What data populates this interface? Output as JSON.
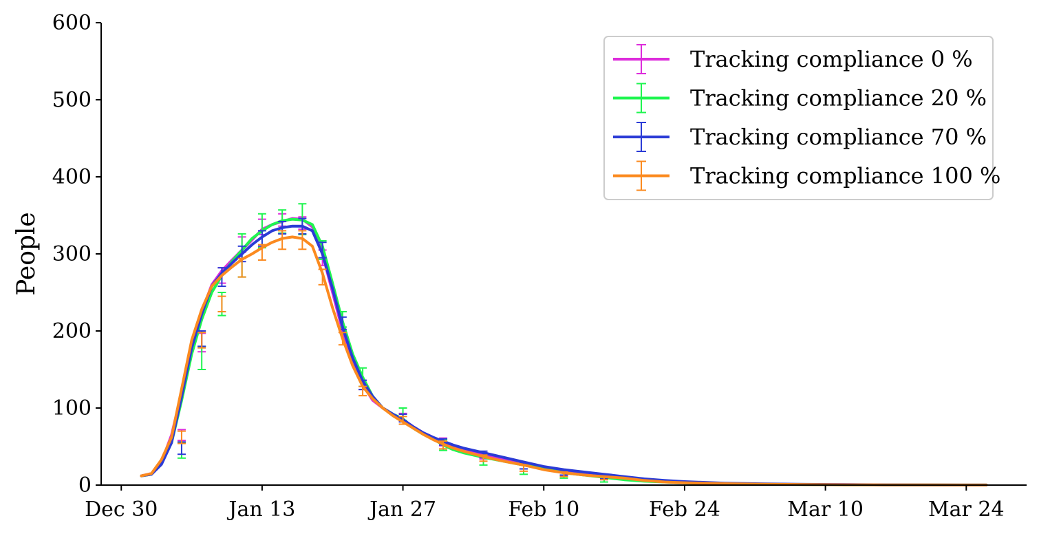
{
  "chart_data": {
    "type": "line",
    "title": "",
    "xlabel": "",
    "ylabel": "People",
    "ylim": [
      0,
      600
    ],
    "yticks": [
      0,
      100,
      200,
      300,
      400,
      500,
      600
    ],
    "xlim": [
      "2020-12-28",
      "2021-03-30"
    ],
    "xticks": [
      {
        "date": "2020-12-30",
        "label": "Dec 30"
      },
      {
        "date": "2021-01-13",
        "label": "Jan 13"
      },
      {
        "date": "2021-01-27",
        "label": "Jan 27"
      },
      {
        "date": "2021-02-10",
        "label": "Feb 10"
      },
      {
        "date": "2021-02-24",
        "label": "Feb 24"
      },
      {
        "date": "2021-03-10",
        "label": "Mar 10"
      },
      {
        "date": "2021-03-24",
        "label": "Mar 24"
      }
    ],
    "grid": false,
    "legend": "top-right",
    "x": [
      "2021-01-01",
      "2021-01-02",
      "2021-01-03",
      "2021-01-04",
      "2021-01-05",
      "2021-01-06",
      "2021-01-07",
      "2021-01-08",
      "2021-01-09",
      "2021-01-10",
      "2021-01-11",
      "2021-01-12",
      "2021-01-13",
      "2021-01-14",
      "2021-01-15",
      "2021-01-16",
      "2021-01-17",
      "2021-01-18",
      "2021-01-19",
      "2021-01-20",
      "2021-01-21",
      "2021-01-22",
      "2021-01-23",
      "2021-01-24",
      "2021-01-25",
      "2021-01-26",
      "2021-01-27",
      "2021-01-28",
      "2021-01-29",
      "2021-01-30",
      "2021-01-31",
      "2021-02-01",
      "2021-02-02",
      "2021-02-04",
      "2021-02-06",
      "2021-02-08",
      "2021-02-10",
      "2021-02-12",
      "2021-02-14",
      "2021-02-16",
      "2021-02-18",
      "2021-02-20",
      "2021-02-22",
      "2021-02-24",
      "2021-02-28",
      "2021-03-04",
      "2021-03-08",
      "2021-03-12",
      "2021-03-16",
      "2021-03-20",
      "2021-03-24",
      "2021-03-26"
    ],
    "series": [
      {
        "name": "Tracking compliance 0 %",
        "color": "#dd2cdb",
        "values": [
          12,
          15,
          30,
          65,
          120,
          185,
          225,
          260,
          278,
          292,
          305,
          318,
          332,
          338,
          342,
          346,
          345,
          335,
          300,
          250,
          200,
          160,
          130,
          110,
          100,
          92,
          85,
          76,
          68,
          62,
          56,
          51,
          47,
          40,
          33,
          28,
          22,
          18,
          15,
          12,
          9,
          7,
          5,
          3.5,
          2,
          1.2,
          0.8,
          0.5,
          0.3,
          0.2,
          0.1,
          0.1
        ],
        "errors": [
          {
            "x": "2021-01-05",
            "y": 65,
            "err": 7
          },
          {
            "x": "2021-01-07",
            "y": 185,
            "err": 12
          },
          {
            "x": "2021-01-09",
            "y": 272,
            "err": 10
          },
          {
            "x": "2021-01-11",
            "y": 312,
            "err": 10
          },
          {
            "x": "2021-01-13",
            "y": 335,
            "err": 10
          },
          {
            "x": "2021-01-15",
            "y": 344,
            "err": 8
          },
          {
            "x": "2021-01-17",
            "y": 340,
            "err": 8
          },
          {
            "x": "2021-01-19",
            "y": 295,
            "err": 10
          },
          {
            "x": "2021-01-21",
            "y": 215,
            "err": 10
          },
          {
            "x": "2021-01-23",
            "y": 130,
            "err": 6
          },
          {
            "x": "2021-01-27",
            "y": 88,
            "err": 5
          },
          {
            "x": "2021-01-31",
            "y": 56,
            "err": 5
          },
          {
            "x": "2021-02-04",
            "y": 38,
            "err": 4
          },
          {
            "x": "2021-02-08",
            "y": 25,
            "err": 4
          },
          {
            "x": "2021-02-12",
            "y": 15,
            "err": 3
          },
          {
            "x": "2021-02-16",
            "y": 9,
            "err": 2
          }
        ]
      },
      {
        "name": "Tracking compliance 20 %",
        "color": "#1ff550",
        "values": [
          12,
          14,
          28,
          55,
          110,
          170,
          215,
          250,
          272,
          290,
          305,
          320,
          330,
          338,
          343,
          345,
          344,
          338,
          310,
          262,
          212,
          170,
          140,
          115,
          100,
          92,
          86,
          74,
          66,
          60,
          52,
          46,
          42,
          36,
          31,
          26,
          21,
          16,
          13,
          10,
          7,
          5,
          4,
          3,
          1.8,
          1.1,
          0.7,
          0.4,
          0.3,
          0.2,
          0.1,
          0.1
        ],
        "errors": [
          {
            "x": "2021-01-05",
            "y": 45,
            "err": 10
          },
          {
            "x": "2021-01-07",
            "y": 165,
            "err": 15
          },
          {
            "x": "2021-01-09",
            "y": 235,
            "err": 15
          },
          {
            "x": "2021-01-11",
            "y": 298,
            "err": 28
          },
          {
            "x": "2021-01-13",
            "y": 330,
            "err": 22
          },
          {
            "x": "2021-01-15",
            "y": 342,
            "err": 15
          },
          {
            "x": "2021-01-17",
            "y": 345,
            "err": 20
          },
          {
            "x": "2021-01-19",
            "y": 305,
            "err": 12
          },
          {
            "x": "2021-01-21",
            "y": 215,
            "err": 10
          },
          {
            "x": "2021-01-23",
            "y": 140,
            "err": 12
          },
          {
            "x": "2021-01-27",
            "y": 92,
            "err": 8
          },
          {
            "x": "2021-01-31",
            "y": 52,
            "err": 7
          },
          {
            "x": "2021-02-04",
            "y": 32,
            "err": 6
          },
          {
            "x": "2021-02-08",
            "y": 20,
            "err": 6
          },
          {
            "x": "2021-02-12",
            "y": 13,
            "err": 4
          },
          {
            "x": "2021-02-16",
            "y": 7,
            "err": 3
          }
        ]
      },
      {
        "name": "Tracking compliance 70 %",
        "color": "#2b3bd6",
        "values": [
          12,
          14,
          27,
          55,
          115,
          178,
          222,
          258,
          275,
          288,
          300,
          312,
          322,
          330,
          334,
          336,
          336,
          330,
          300,
          255,
          205,
          165,
          135,
          115,
          100,
          92,
          85,
          76,
          68,
          62,
          57,
          52,
          48,
          42,
          36,
          30,
          24,
          20,
          17,
          14,
          11,
          8,
          6,
          4.5,
          2.5,
          1.5,
          1,
          0.6,
          0.4,
          0.2,
          0.1,
          0.1
        ],
        "errors": [
          {
            "x": "2021-01-05",
            "y": 48,
            "err": 8
          },
          {
            "x": "2021-01-07",
            "y": 190,
            "err": 10
          },
          {
            "x": "2021-01-09",
            "y": 270,
            "err": 12
          },
          {
            "x": "2021-01-11",
            "y": 300,
            "err": 10
          },
          {
            "x": "2021-01-13",
            "y": 320,
            "err": 10
          },
          {
            "x": "2021-01-15",
            "y": 334,
            "err": 8
          },
          {
            "x": "2021-01-17",
            "y": 336,
            "err": 10
          },
          {
            "x": "2021-01-19",
            "y": 305,
            "err": 10
          },
          {
            "x": "2021-01-21",
            "y": 210,
            "err": 8
          },
          {
            "x": "2021-01-23",
            "y": 130,
            "err": 6
          },
          {
            "x": "2021-01-27",
            "y": 87,
            "err": 5
          },
          {
            "x": "2021-01-31",
            "y": 56,
            "err": 4
          },
          {
            "x": "2021-02-04",
            "y": 40,
            "err": 4
          },
          {
            "x": "2021-02-08",
            "y": 25,
            "err": 4
          },
          {
            "x": "2021-02-12",
            "y": 16,
            "err": 3
          },
          {
            "x": "2021-02-16",
            "y": 10,
            "err": 2
          }
        ]
      },
      {
        "name": "Tracking compliance 100 %",
        "color": "#fb8a1f",
        "values": [
          12,
          15,
          33,
          62,
          125,
          188,
          228,
          258,
          272,
          283,
          293,
          300,
          308,
          315,
          320,
          322,
          320,
          310,
          275,
          230,
          190,
          155,
          128,
          112,
          100,
          90,
          82,
          74,
          66,
          59,
          53,
          48,
          44,
          37,
          31,
          26,
          20,
          16,
          13,
          11,
          9,
          6,
          4,
          3,
          1.8,
          1.1,
          0.7,
          0.4,
          0.3,
          0.2,
          0.1,
          0.1
        ],
        "errors": [
          {
            "x": "2021-01-05",
            "y": 62,
            "err": 8
          },
          {
            "x": "2021-01-07",
            "y": 188,
            "err": 10
          },
          {
            "x": "2021-01-09",
            "y": 235,
            "err": 10
          },
          {
            "x": "2021-01-11",
            "y": 282,
            "err": 12
          },
          {
            "x": "2021-01-13",
            "y": 302,
            "err": 10
          },
          {
            "x": "2021-01-15",
            "y": 318,
            "err": 12
          },
          {
            "x": "2021-01-17",
            "y": 318,
            "err": 12
          },
          {
            "x": "2021-01-19",
            "y": 270,
            "err": 10
          },
          {
            "x": "2021-01-21",
            "y": 190,
            "err": 8
          },
          {
            "x": "2021-01-23",
            "y": 122,
            "err": 6
          },
          {
            "x": "2021-01-27",
            "y": 84,
            "err": 5
          },
          {
            "x": "2021-01-31",
            "y": 52,
            "err": 5
          },
          {
            "x": "2021-02-04",
            "y": 35,
            "err": 4
          },
          {
            "x": "2021-02-08",
            "y": 22,
            "err": 4
          },
          {
            "x": "2021-02-12",
            "y": 14,
            "err": 3
          },
          {
            "x": "2021-02-16",
            "y": 9,
            "err": 2
          }
        ]
      }
    ]
  }
}
